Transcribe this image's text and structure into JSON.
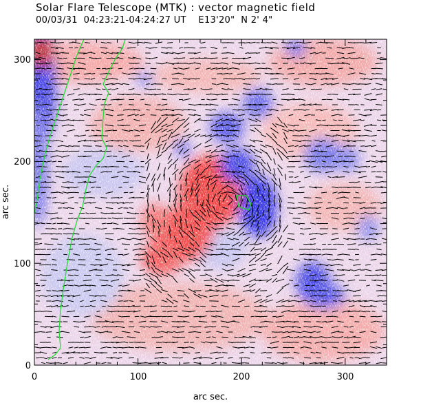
{
  "title": "Solar Flare Telescope (MTK) : vector magnetic field",
  "subtitle": "00/03/31  04:23:21-04:24:27 UT    E13'20\"  N 2' 4\"",
  "axes": {
    "xlabel": "arc sec.",
    "ylabel": "arc sec.",
    "xlim": [
      0,
      340
    ],
    "ylim": [
      0,
      320
    ],
    "xticks": [
      "0",
      "100",
      "200",
      "300"
    ],
    "yticks": [
      "0",
      "100",
      "200",
      "300"
    ]
  },
  "colors": {
    "positive": "#f04848",
    "negative": "#3a3ae6",
    "contour": "#22dd33",
    "vector": "#000000"
  }
}
